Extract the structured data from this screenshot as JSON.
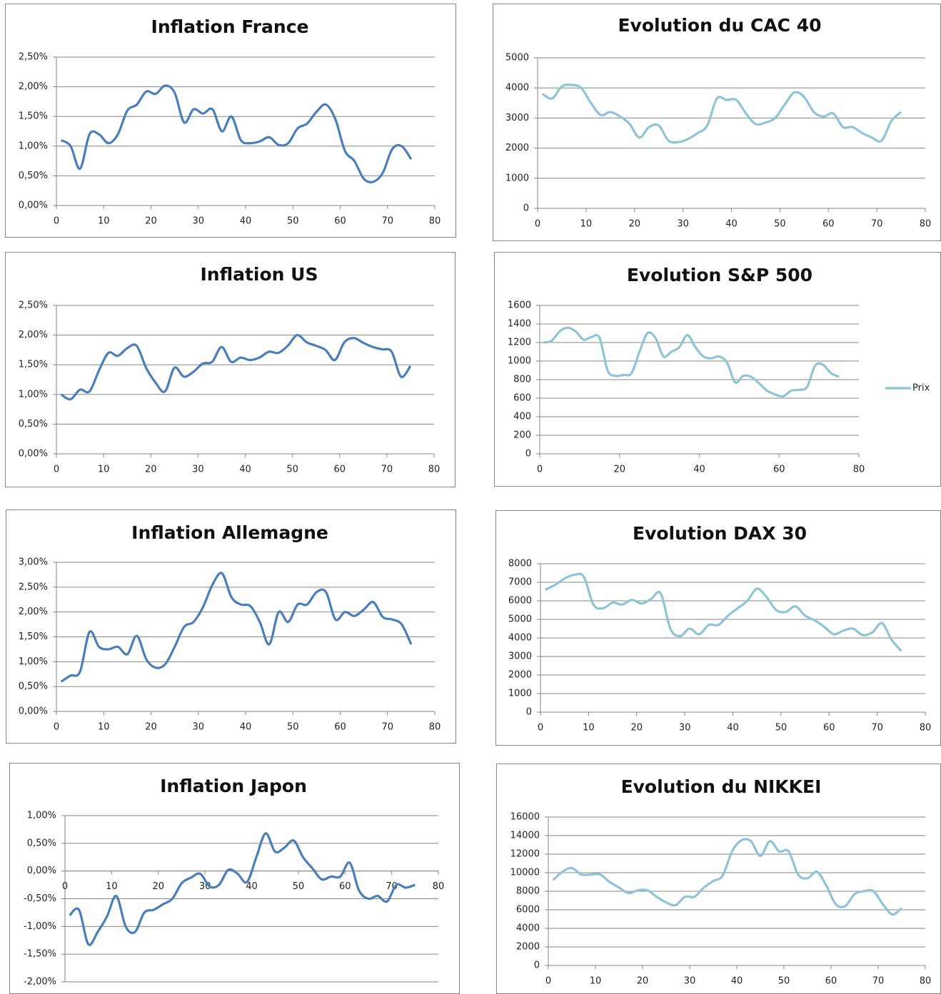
{
  "chart_data": [
    {
      "type": "line",
      "title": "Inflation France",
      "x": [
        1,
        3,
        5,
        7,
        9,
        11,
        13,
        15,
        17,
        19,
        21,
        23,
        25,
        27,
        29,
        31,
        33,
        35,
        37,
        39,
        41,
        43,
        45,
        47,
        49,
        51,
        53,
        55,
        57,
        59,
        61,
        63,
        65,
        67,
        69,
        71,
        73,
        75
      ],
      "values": [
        1.1,
        1.0,
        0.62,
        1.2,
        1.2,
        1.05,
        1.2,
        1.6,
        1.7,
        1.92,
        1.88,
        2.02,
        1.9,
        1.4,
        1.62,
        1.55,
        1.62,
        1.25,
        1.5,
        1.1,
        1.05,
        1.08,
        1.15,
        1.02,
        1.05,
        1.3,
        1.38,
        1.58,
        1.7,
        1.45,
        0.92,
        0.75,
        0.45,
        0.4,
        0.55,
        0.95,
        1.0,
        0.78
      ],
      "color": "#4a7ebb",
      "xlim": [
        0,
        80
      ],
      "xticks": [
        0,
        10,
        20,
        30,
        40,
        50,
        60,
        70,
        80
      ],
      "ylim": [
        0,
        2.5
      ],
      "yticks": [
        {
          "value": 0,
          "label": "0,00%"
        },
        {
          "value": 0.5,
          "label": "0,50%"
        },
        {
          "value": 1,
          "label": "1,00%"
        },
        {
          "value": 1.5,
          "label": "1,50%"
        },
        {
          "value": 2,
          "label": "2,00%"
        },
        {
          "value": 2.5,
          "label": "2,50%"
        }
      ],
      "grid": true
    },
    {
      "type": "line",
      "title": "Evolution du CAC 40",
      "x": [
        1,
        3,
        5,
        7,
        9,
        11,
        13,
        15,
        17,
        19,
        21,
        23,
        25,
        27,
        29,
        31,
        33,
        35,
        37,
        39,
        41,
        43,
        45,
        47,
        49,
        51,
        53,
        55,
        57,
        59,
        61,
        63,
        65,
        67,
        69,
        71,
        73,
        75
      ],
      "values": [
        3800,
        3650,
        4050,
        4100,
        4000,
        3500,
        3100,
        3200,
        3050,
        2800,
        2350,
        2700,
        2750,
        2250,
        2200,
        2300,
        2500,
        2750,
        3650,
        3600,
        3600,
        3150,
        2800,
        2850,
        3000,
        3450,
        3850,
        3700,
        3200,
        3050,
        3150,
        2700,
        2700,
        2500,
        2350,
        2250,
        2900,
        3200
      ],
      "color": "#8fc3d6",
      "xlim": [
        0,
        80
      ],
      "xticks": [
        0,
        10,
        20,
        30,
        40,
        50,
        60,
        70,
        80
      ],
      "ylim": [
        0,
        5000
      ],
      "yticks": [
        0,
        1000,
        2000,
        3000,
        4000,
        5000
      ],
      "grid": true
    },
    {
      "type": "line",
      "title": "Inflation US",
      "x": [
        1,
        3,
        5,
        7,
        9,
        11,
        13,
        15,
        17,
        19,
        21,
        23,
        25,
        27,
        29,
        31,
        33,
        35,
        37,
        39,
        41,
        43,
        45,
        47,
        49,
        51,
        53,
        55,
        57,
        59,
        61,
        63,
        65,
        67,
        69,
        71,
        73,
        75
      ],
      "values": [
        1.0,
        0.92,
        1.08,
        1.05,
        1.4,
        1.7,
        1.65,
        1.78,
        1.82,
        1.45,
        1.2,
        1.05,
        1.45,
        1.3,
        1.38,
        1.52,
        1.55,
        1.8,
        1.55,
        1.62,
        1.58,
        1.62,
        1.72,
        1.7,
        1.82,
        2.0,
        1.88,
        1.82,
        1.75,
        1.58,
        1.88,
        1.95,
        1.87,
        1.8,
        1.76,
        1.72,
        1.3,
        1.48
      ],
      "color": "#4a7ebb",
      "xlim": [
        0,
        80
      ],
      "xticks": [
        0,
        10,
        20,
        30,
        40,
        50,
        60,
        70,
        80
      ],
      "ylim": [
        0,
        2.5
      ],
      "yticks": [
        {
          "value": 0,
          "label": "0,00%"
        },
        {
          "value": 0.5,
          "label": "0,50%"
        },
        {
          "value": 1,
          "label": "1,00%"
        },
        {
          "value": 1.5,
          "label": "1,50%"
        },
        {
          "value": 2,
          "label": "2,00%"
        },
        {
          "value": 2.5,
          "label": "2,50%"
        }
      ],
      "grid": true
    },
    {
      "type": "line",
      "title": "Evolution S&P 500",
      "x": [
        1,
        3,
        5,
        7,
        9,
        11,
        13,
        15,
        17,
        19,
        21,
        23,
        25,
        27,
        29,
        31,
        33,
        35,
        37,
        39,
        41,
        43,
        45,
        47,
        49,
        51,
        53,
        55,
        57,
        59,
        61,
        63,
        65,
        67,
        69,
        71,
        73,
        75
      ],
      "series": [
        {
          "name": "Prix",
          "color": "#8fc3d6",
          "values": [
            1200,
            1220,
            1320,
            1360,
            1320,
            1230,
            1260,
            1250,
            900,
            840,
            850,
            870,
            1100,
            1300,
            1250,
            1050,
            1100,
            1150,
            1280,
            1150,
            1050,
            1030,
            1050,
            980,
            770,
            840,
            830,
            760,
            680,
            640,
            620,
            680,
            690,
            720,
            950,
            960,
            870,
            830
          ]
        }
      ],
      "legend": "right",
      "xlim": [
        0,
        80
      ],
      "xticks": [
        0,
        20,
        40,
        60,
        80
      ],
      "ylim": [
        0,
        1600
      ],
      "yticks": [
        0,
        200,
        400,
        600,
        800,
        1000,
        1200,
        1400,
        1600
      ],
      "grid": true
    },
    {
      "type": "line",
      "title": "Inflation Allemagne",
      "x": [
        1,
        3,
        5,
        7,
        9,
        11,
        13,
        15,
        17,
        19,
        21,
        23,
        25,
        27,
        29,
        31,
        33,
        35,
        37,
        39,
        41,
        43,
        45,
        47,
        49,
        51,
        53,
        55,
        57,
        59,
        61,
        63,
        65,
        67,
        69,
        71,
        73,
        75
      ],
      "values": [
        0.6,
        0.72,
        0.8,
        1.6,
        1.3,
        1.25,
        1.3,
        1.15,
        1.52,
        1.05,
        0.88,
        0.95,
        1.3,
        1.7,
        1.8,
        2.1,
        2.55,
        2.78,
        2.3,
        2.15,
        2.12,
        1.8,
        1.35,
        2.0,
        1.8,
        2.15,
        2.15,
        2.4,
        2.4,
        1.85,
        2.0,
        1.92,
        2.05,
        2.2,
        1.9,
        1.85,
        1.75,
        1.35
      ],
      "color": "#4a7ebb",
      "xlim": [
        0,
        80
      ],
      "xticks": [
        0,
        10,
        20,
        30,
        40,
        50,
        60,
        70,
        80
      ],
      "ylim": [
        0,
        3
      ],
      "yticks": [
        {
          "value": 0,
          "label": "0,00%"
        },
        {
          "value": 0.5,
          "label": "0,50%"
        },
        {
          "value": 1,
          "label": "1,00%"
        },
        {
          "value": 1.5,
          "label": "1,50%"
        },
        {
          "value": 2,
          "label": "2,00%"
        },
        {
          "value": 2.5,
          "label": "2,50%"
        },
        {
          "value": 3,
          "label": "3,00%"
        }
      ],
      "grid": true
    },
    {
      "type": "line",
      "title": "Evolution DAX 30",
      "x": [
        1,
        3,
        5,
        7,
        9,
        11,
        13,
        15,
        17,
        19,
        21,
        23,
        25,
        27,
        29,
        31,
        33,
        35,
        37,
        39,
        41,
        43,
        45,
        47,
        49,
        51,
        53,
        55,
        57,
        59,
        61,
        63,
        65,
        67,
        69,
        71,
        73,
        75
      ],
      "values": [
        6600,
        6850,
        7200,
        7400,
        7300,
        5800,
        5600,
        5900,
        5800,
        6050,
        5850,
        6100,
        6400,
        4500,
        4100,
        4500,
        4200,
        4700,
        4700,
        5200,
        5600,
        6000,
        6650,
        6200,
        5500,
        5400,
        5700,
        5200,
        4950,
        4600,
        4200,
        4400,
        4500,
        4150,
        4300,
        4800,
        3900,
        3300
      ],
      "color": "#8fc3d6",
      "xlim": [
        0,
        80
      ],
      "xticks": [
        0,
        10,
        20,
        30,
        40,
        50,
        60,
        70,
        80
      ],
      "ylim": [
        0,
        8000
      ],
      "yticks": [
        0,
        1000,
        2000,
        3000,
        4000,
        5000,
        6000,
        7000,
        8000
      ],
      "grid": true
    },
    {
      "type": "line",
      "title": "Inflation Japon",
      "x": [
        1,
        3,
        5,
        7,
        9,
        11,
        13,
        15,
        17,
        19,
        21,
        23,
        25,
        27,
        29,
        31,
        33,
        35,
        37,
        39,
        41,
        43,
        45,
        47,
        49,
        51,
        53,
        55,
        57,
        59,
        61,
        63,
        65,
        67,
        69,
        71,
        73,
        75
      ],
      "values": [
        -0.8,
        -0.7,
        -1.32,
        -1.1,
        -0.82,
        -0.45,
        -1.0,
        -1.1,
        -0.75,
        -0.7,
        -0.6,
        -0.5,
        -0.22,
        -0.12,
        -0.05,
        -0.28,
        -0.25,
        0.02,
        -0.05,
        -0.2,
        0.25,
        0.68,
        0.35,
        0.42,
        0.55,
        0.25,
        0.05,
        -0.15,
        -0.1,
        -0.1,
        0.15,
        -0.35,
        -0.5,
        -0.45,
        -0.55,
        -0.25,
        -0.3,
        -0.25
      ],
      "color": "#4a7ebb",
      "xlim": [
        0,
        80
      ],
      "xticks": [
        0,
        10,
        20,
        30,
        40,
        50,
        60,
        70,
        80
      ],
      "ylim": [
        -2,
        1
      ],
      "yticks": [
        {
          "value": -2,
          "label": "-2,00%"
        },
        {
          "value": -1.5,
          "label": "-1,50%"
        },
        {
          "value": -1,
          "label": "-1,00%"
        },
        {
          "value": -0.5,
          "label": "-0,50%"
        },
        {
          "value": 0,
          "label": "0,00%"
        },
        {
          "value": 0.5,
          "label": "0,50%"
        },
        {
          "value": 1,
          "label": "1,00%"
        }
      ],
      "grid": true
    },
    {
      "type": "line",
      "title": "Evolution du NIKKEI",
      "x": [
        1,
        3,
        5,
        7,
        9,
        11,
        13,
        15,
        17,
        19,
        21,
        23,
        25,
        27,
        29,
        31,
        33,
        35,
        37,
        39,
        41,
        43,
        45,
        47,
        49,
        51,
        53,
        55,
        57,
        59,
        61,
        63,
        65,
        67,
        69,
        71,
        73,
        75
      ],
      "values": [
        9200,
        10100,
        10500,
        9800,
        9800,
        9800,
        9000,
        8400,
        7800,
        8100,
        8100,
        7400,
        6800,
        6500,
        7400,
        7400,
        8400,
        9100,
        9700,
        12300,
        13500,
        13400,
        11800,
        13400,
        12300,
        12300,
        9800,
        9400,
        10100,
        8600,
        6600,
        6400,
        7700,
        8000,
        8000,
        6600,
        5500,
        6200
      ],
      "color": "#8fc3d6",
      "xlim": [
        0,
        80
      ],
      "xticks": [
        0,
        10,
        20,
        30,
        40,
        50,
        60,
        70,
        80
      ],
      "ylim": [
        0,
        16000
      ],
      "yticks": [
        0,
        2000,
        4000,
        6000,
        8000,
        10000,
        12000,
        14000,
        16000
      ],
      "grid": true
    }
  ]
}
